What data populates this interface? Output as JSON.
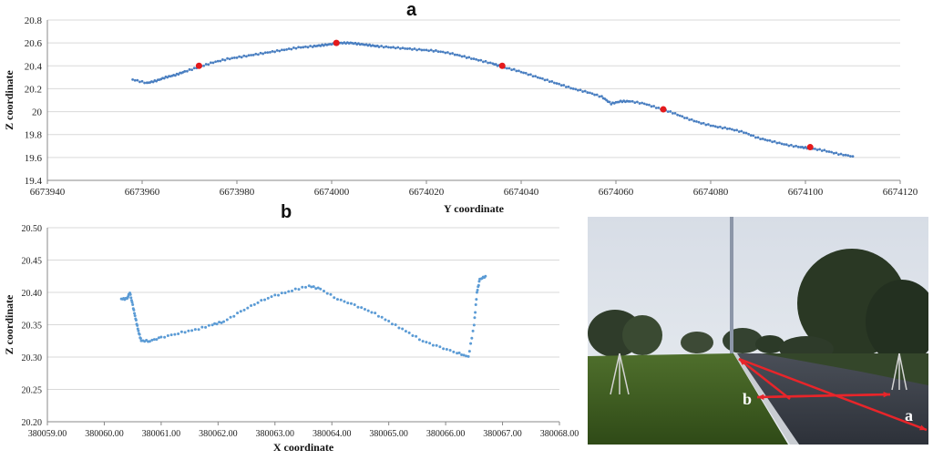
{
  "panels": {
    "a": "a",
    "b": "b"
  },
  "chart_data": [
    {
      "type": "scatter",
      "title": "a",
      "xlabel": "Y coordinate",
      "ylabel": "Z coordinate",
      "xlim": [
        6673940,
        6674120
      ],
      "ylim": [
        19.4,
        20.8
      ],
      "xticks": [
        6673940,
        6673960,
        6673980,
        6674000,
        6674020,
        6674040,
        6674060,
        6674080,
        6674100,
        6674120
      ],
      "yticks": [
        19.4,
        19.6,
        19.8,
        20,
        20.2,
        20.4,
        20.6,
        20.8
      ],
      "xtick_labels": [
        "6673940",
        "6673960",
        "6673980",
        "6674000",
        "6674020",
        "6674040",
        "6674060",
        "6674080",
        "6674100",
        "6674120"
      ],
      "ytick_labels": [
        "19.4",
        "19.6",
        "19.8",
        "20",
        "20.2",
        "20.4",
        "20.6",
        "20.8"
      ],
      "series": [
        {
          "color": "#4a7fc1",
          "points": [
            [
              6673958,
              20.28
            ],
            [
              6673961,
              20.25
            ],
            [
              6673963,
              20.27
            ],
            [
              6673965,
              20.3
            ],
            [
              6673967,
              20.32
            ],
            [
              6673969,
              20.35
            ],
            [
              6673972,
              20.39
            ],
            [
              6673975,
              20.43
            ],
            [
              6673978,
              20.46
            ],
            [
              6673981,
              20.48
            ],
            [
              6673984,
              20.5
            ],
            [
              6673987,
              20.52
            ],
            [
              6673990,
              20.54
            ],
            [
              6673993,
              20.56
            ],
            [
              6673996,
              20.57
            ],
            [
              6673998,
              20.58
            ],
            [
              6674000,
              20.59
            ],
            [
              6674002,
              20.6
            ],
            [
              6674004,
              20.6
            ],
            [
              6674006,
              20.59
            ],
            [
              6674008,
              20.58
            ],
            [
              6674010,
              20.57
            ],
            [
              6674013,
              20.56
            ],
            [
              6674016,
              20.55
            ],
            [
              6674019,
              20.54
            ],
            [
              6674022,
              20.53
            ],
            [
              6674025,
              20.51
            ],
            [
              6674028,
              20.48
            ],
            [
              6674031,
              20.45
            ],
            [
              6674034,
              20.42
            ],
            [
              6674036,
              20.39
            ],
            [
              6674039,
              20.36
            ],
            [
              6674042,
              20.32
            ],
            [
              6674045,
              20.28
            ],
            [
              6674048,
              20.24
            ],
            [
              6674051,
              20.2
            ],
            [
              6674054,
              20.17
            ],
            [
              6674057,
              20.13
            ],
            [
              6674059,
              20.07
            ],
            [
              6674061,
              20.09
            ],
            [
              6674063,
              20.09
            ],
            [
              6674066,
              20.07
            ],
            [
              6674069,
              20.03
            ],
            [
              6674072,
              19.99
            ],
            [
              6674075,
              19.94
            ],
            [
              6674078,
              19.9
            ],
            [
              6674081,
              19.87
            ],
            [
              6674084,
              19.85
            ],
            [
              6674087,
              19.82
            ],
            [
              6674090,
              19.77
            ],
            [
              6674093,
              19.74
            ],
            [
              6674096,
              19.71
            ],
            [
              6674099,
              19.69
            ],
            [
              6674101,
              19.68
            ],
            [
              6674104,
              19.66
            ],
            [
              6674107,
              19.63
            ],
            [
              6674110,
              19.61
            ]
          ]
        },
        {
          "color": "#e41a1c",
          "points": [
            [
              6673972,
              20.4
            ],
            [
              6674001,
              20.6
            ],
            [
              6674036,
              20.4
            ],
            [
              6674070,
              20.02
            ],
            [
              6674101,
              19.69
            ]
          ]
        }
      ]
    },
    {
      "type": "scatter",
      "title": "b",
      "xlabel": "X coordinate",
      "ylabel": "Z coordinate",
      "xlim": [
        380059,
        380068
      ],
      "ylim": [
        20.2,
        20.5
      ],
      "xticks": [
        380059,
        380060,
        380061,
        380062,
        380063,
        380064,
        380065,
        380066,
        380067,
        380068
      ],
      "yticks": [
        20.2,
        20.25,
        20.3,
        20.35,
        20.4,
        20.45,
        20.5
      ],
      "xtick_labels": [
        "380059.00",
        "380060.00",
        "380061.00",
        "380062.00",
        "380063.00",
        "380064.00",
        "380065.00",
        "380066.00",
        "380067.00",
        "380068.00"
      ],
      "ytick_labels": [
        "20.20",
        "20.25",
        "20.30",
        "20.35",
        "20.40",
        "20.45",
        "20.50"
      ],
      "series": [
        {
          "color": "#5b9bd5",
          "points": [
            [
              380060.3,
              20.39
            ],
            [
              380060.4,
              20.39
            ],
            [
              380060.45,
              20.4
            ],
            [
              380060.5,
              20.38
            ],
            [
              380060.55,
              20.36
            ],
            [
              380060.6,
              20.34
            ],
            [
              380060.65,
              20.325
            ],
            [
              380060.8,
              20.325
            ],
            [
              380061.0,
              20.33
            ],
            [
              380061.3,
              20.337
            ],
            [
              380061.6,
              20.342
            ],
            [
              380061.9,
              20.35
            ],
            [
              380062.1,
              20.355
            ],
            [
              380062.4,
              20.37
            ],
            [
              380062.7,
              20.385
            ],
            [
              380063.0,
              20.395
            ],
            [
              380063.3,
              20.403
            ],
            [
              380063.6,
              20.41
            ],
            [
              380063.8,
              20.405
            ],
            [
              380064.1,
              20.39
            ],
            [
              380064.4,
              20.38
            ],
            [
              380064.7,
              20.37
            ],
            [
              380065.0,
              20.355
            ],
            [
              380065.3,
              20.34
            ],
            [
              380065.6,
              20.325
            ],
            [
              380065.9,
              20.315
            ],
            [
              380066.2,
              20.307
            ],
            [
              380066.4,
              20.3
            ],
            [
              380066.5,
              20.35
            ],
            [
              380066.55,
              20.4
            ],
            [
              380066.6,
              20.42
            ],
            [
              380066.7,
              20.425
            ]
          ]
        }
      ]
    }
  ],
  "photo": {
    "labels": {
      "b": "b",
      "a": "a"
    },
    "arrow_color": "#e8252a"
  }
}
